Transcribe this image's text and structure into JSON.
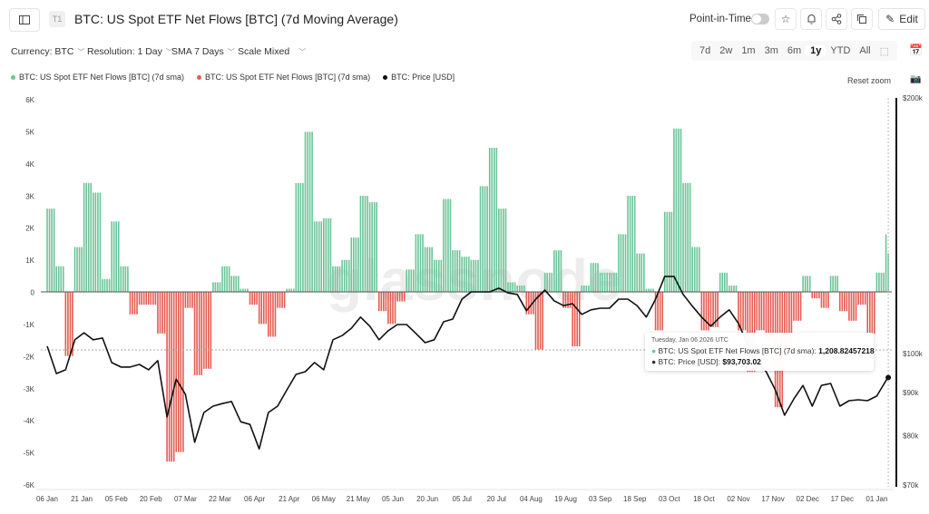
{
  "header": {
    "tag": "T1",
    "title": "BTC: US Spot ETF Net Flows [BTC] (7d Moving Average)",
    "point_in_time_label": "Point-in-Time",
    "point_in_time_on": false,
    "edit_label": "Edit",
    "icons": [
      "sidebar-icon",
      "star-icon",
      "bell-icon",
      "share-icon",
      "copy-icon",
      "pencil-icon"
    ]
  },
  "controls": {
    "currency": "Currency: BTC",
    "resolution": "Resolution: 1 Day",
    "sma": "SMA 7 Days",
    "scale": "Scale Mixed",
    "ranges": [
      "7d",
      "2w",
      "1m",
      "3m",
      "6m",
      "1y",
      "YTD",
      "All"
    ],
    "active_range": "1y",
    "reset_zoom": "Reset zoom"
  },
  "colors": {
    "positive": "#6cc497",
    "negative": "#e45c52",
    "price": "#111111"
  },
  "tooltip": {
    "date": "Tuesday, Jan 06 2026 UTC",
    "flow_label": "BTC: US Spot ETF Net Flows [BTC] (7d sma): ",
    "flow_value": "1,208.82457218",
    "price_label": "BTC: Price [USD]: ",
    "price_value": "$93,703.02"
  },
  "watermark": "glassnode",
  "chart_data": {
    "type": "bar+line",
    "title": "BTC: US Spot ETF Net Flows [BTC] (7d Moving Average)",
    "legend": [
      {
        "name": "BTC: US Spot ETF Net Flows [BTC] (7d sma)",
        "color": "#6cc497"
      },
      {
        "name": "BTC: US Spot ETF Net Flows [BTC] (7d sma)",
        "color": "#e45c52"
      },
      {
        "name": "BTC: Price [USD]",
        "color": "#111111"
      }
    ],
    "legend_placement": "top-left",
    "left_axis": {
      "ylim": [
        -6000,
        6000
      ],
      "ticks": [
        "6K",
        "5K",
        "4K",
        "3K",
        "2K",
        "1K",
        "0",
        "-1K",
        "-2K",
        "-3K",
        "-4K",
        "-5K",
        "-6K"
      ]
    },
    "right_axis": {
      "scale": "log",
      "ylim": [
        70000,
        200000
      ],
      "ticks": [
        {
          "v": 200000,
          "l": "$200k"
        },
        {
          "v": 100000,
          "l": "$100k"
        },
        {
          "v": 90000,
          "l": "$90k"
        },
        {
          "v": 80000,
          "l": "$80k"
        },
        {
          "v": 70000,
          "l": "$70k"
        }
      ]
    },
    "x_ticks": [
      "06 Jan",
      "21 Jan",
      "05 Feb",
      "20 Feb",
      "07 Mar",
      "22 Mar",
      "06 Apr",
      "21 Apr",
      "06 May",
      "21 May",
      "05 Jun",
      "20 Jun",
      "05 Jul",
      "20 Jul",
      "04 Aug",
      "19 Aug",
      "03 Sep",
      "18 Sep",
      "03 Oct",
      "18 Oct",
      "02 Nov",
      "17 Nov",
      "02 Dec",
      "17 Dec",
      "01 Jan"
    ],
    "grid": false,
    "x": [
      "2025-01-06",
      "2025-01-10",
      "2025-01-14",
      "2025-01-18",
      "2025-01-22",
      "2025-01-26",
      "2025-01-30",
      "2025-02-03",
      "2025-02-07",
      "2025-02-11",
      "2025-02-15",
      "2025-02-19",
      "2025-02-23",
      "2025-02-27",
      "2025-03-03",
      "2025-03-07",
      "2025-03-11",
      "2025-03-15",
      "2025-03-19",
      "2025-03-23",
      "2025-03-27",
      "2025-03-31",
      "2025-04-04",
      "2025-04-08",
      "2025-04-12",
      "2025-04-16",
      "2025-04-20",
      "2025-04-24",
      "2025-04-28",
      "2025-05-02",
      "2025-05-06",
      "2025-05-10",
      "2025-05-14",
      "2025-05-18",
      "2025-05-22",
      "2025-05-26",
      "2025-05-30",
      "2025-06-03",
      "2025-06-07",
      "2025-06-11",
      "2025-06-15",
      "2025-06-19",
      "2025-06-23",
      "2025-06-27",
      "2025-07-01",
      "2025-07-05",
      "2025-07-09",
      "2025-07-13",
      "2025-07-17",
      "2025-07-21",
      "2025-07-25",
      "2025-07-29",
      "2025-08-02",
      "2025-08-06",
      "2025-08-10",
      "2025-08-14",
      "2025-08-18",
      "2025-08-22",
      "2025-08-26",
      "2025-08-30",
      "2025-09-03",
      "2025-09-07",
      "2025-09-11",
      "2025-09-15",
      "2025-09-19",
      "2025-09-23",
      "2025-09-27",
      "2025-10-01",
      "2025-10-05",
      "2025-10-09",
      "2025-10-13",
      "2025-10-17",
      "2025-10-21",
      "2025-10-25",
      "2025-10-29",
      "2025-11-02",
      "2025-11-06",
      "2025-11-10",
      "2025-11-14",
      "2025-11-18",
      "2025-11-22",
      "2025-11-26",
      "2025-11-30",
      "2025-12-04",
      "2025-12-08",
      "2025-12-12",
      "2025-12-16",
      "2025-12-20",
      "2025-12-24",
      "2025-12-28",
      "2026-01-01",
      "2026-01-05",
      "2026-01-06"
    ],
    "series": [
      {
        "name": "BTC: US Spot ETF Net Flows [BTC] (7d sma)",
        "type": "bar",
        "values": [
          2600,
          800,
          -2000,
          1400,
          3400,
          3100,
          400,
          2200,
          800,
          -700,
          -400,
          -400,
          -1300,
          -5300,
          -5000,
          -500,
          -2600,
          -2400,
          300,
          800,
          500,
          100,
          -400,
          -1000,
          -1400,
          -500,
          100,
          3400,
          5000,
          2200,
          2300,
          800,
          1000,
          1700,
          3000,
          2800,
          -600,
          -1000,
          -300,
          700,
          1800,
          1400,
          1000,
          2900,
          1300,
          1100,
          1000,
          3300,
          4500,
          2600,
          300,
          200,
          -700,
          -1800,
          600,
          1300,
          -500,
          -1700,
          200,
          900,
          600,
          600,
          1800,
          3000,
          1200,
          100,
          -1200,
          2500,
          5100,
          3400,
          1400,
          -1200,
          -1100,
          600,
          200,
          -1200,
          -2500,
          -1200,
          -1500,
          -3600,
          -2000,
          -900,
          500,
          -200,
          -500,
          500,
          -600,
          -900,
          -400,
          -1300,
          600,
          1800,
          1208.82
        ]
      },
      {
        "name": "BTC: Price [USD]",
        "type": "line",
        "values": [
          102000,
          94700,
          95700,
          103800,
          105800,
          103800,
          104300,
          97600,
          96400,
          96400,
          97100,
          95700,
          98100,
          84200,
          93300,
          89500,
          78600,
          85200,
          86700,
          87300,
          87800,
          83100,
          82500,
          77200,
          85200,
          86700,
          90600,
          94500,
          95200,
          97600,
          95700,
          103800,
          105000,
          107100,
          110400,
          107700,
          103800,
          106400,
          108200,
          108200,
          105600,
          103000,
          103800,
          109000,
          109800,
          115900,
          118200,
          118200,
          118200,
          119400,
          117900,
          117400,
          112300,
          115900,
          118800,
          115400,
          113900,
          114500,
          111200,
          112600,
          113100,
          113100,
          115900,
          115900,
          113900,
          110400,
          115900,
          123300,
          123300,
          117400,
          113700,
          110400,
          107700,
          110400,
          112600,
          108500,
          102500,
          98100,
          95200,
          90600,
          84600,
          88400,
          91700,
          86700,
          91700,
          92200,
          86700,
          88000,
          88200,
          88000,
          89100,
          92900,
          93703.02
        ]
      }
    ]
  }
}
